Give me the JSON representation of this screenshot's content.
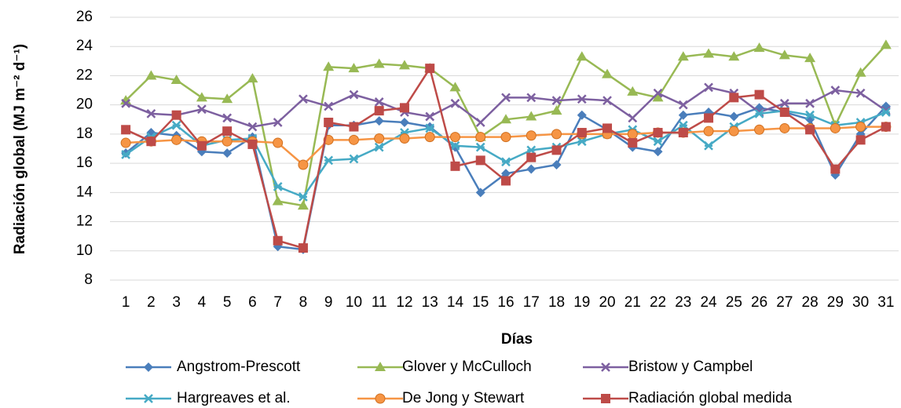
{
  "chart_data": {
    "type": "line",
    "y_label": "Radiación global (MJ m⁻² d⁻¹)",
    "x_label": "Días",
    "categories": [
      "1",
      "2",
      "3",
      "4",
      "5",
      "6",
      "7",
      "8",
      "9",
      "10",
      "11",
      "12",
      "13",
      "14",
      "15",
      "16",
      "17",
      "18",
      "19",
      "20",
      "21",
      "22",
      "23",
      "24",
      "25",
      "26",
      "27",
      "28",
      "29",
      "30",
      "31"
    ],
    "ylim": [
      8,
      26
    ],
    "yticks": [
      8,
      10,
      12,
      14,
      16,
      18,
      20,
      22,
      24,
      26
    ],
    "grid": true,
    "legend": "bottom",
    "series": [
      {
        "name": "Angstrom-Prescott",
        "color": "#4a7ebb",
        "marker": "diamond",
        "values": [
          16.7,
          18.1,
          17.9,
          16.8,
          16.7,
          17.8,
          10.3,
          10.1,
          18.6,
          18.6,
          18.9,
          18.8,
          18.5,
          17.1,
          14.0,
          15.3,
          15.6,
          15.9,
          19.3,
          18.3,
          17.1,
          16.8,
          19.3,
          19.5,
          19.2,
          19.8,
          19.5,
          19.0,
          15.2,
          18.0,
          19.9
        ]
      },
      {
        "name": "Glover y McCulloch",
        "color": "#98b954",
        "marker": "triangle",
        "values": [
          20.3,
          22.0,
          21.7,
          20.5,
          20.4,
          21.8,
          13.4,
          13.1,
          22.6,
          22.5,
          22.8,
          22.7,
          22.5,
          21.2,
          17.8,
          19.0,
          19.2,
          19.6,
          23.3,
          22.1,
          20.9,
          20.5,
          23.3,
          23.5,
          23.3,
          23.9,
          23.4,
          23.2,
          18.6,
          22.2,
          24.1
        ]
      },
      {
        "name": "Bristow y Campbel",
        "color": "#7d60a0",
        "marker": "x",
        "values": [
          20.1,
          19.4,
          19.3,
          19.7,
          19.1,
          18.5,
          18.8,
          20.4,
          19.9,
          20.7,
          20.2,
          19.5,
          19.2,
          20.1,
          18.8,
          20.5,
          20.5,
          20.3,
          20.4,
          20.3,
          19.1,
          20.8,
          20.0,
          21.2,
          20.8,
          19.5,
          20.1,
          20.1,
          21.0,
          20.8,
          19.6
        ]
      },
      {
        "name": "Hargreaves et al.",
        "color": "#46aac5",
        "marker": "star",
        "values": [
          16.6,
          17.8,
          18.6,
          17.2,
          17.6,
          17.7,
          14.4,
          13.7,
          16.2,
          16.3,
          17.1,
          18.1,
          18.4,
          17.2,
          17.1,
          16.1,
          16.9,
          17.1,
          17.5,
          18.0,
          18.3,
          17.5,
          18.6,
          17.2,
          18.5,
          19.4,
          19.6,
          19.3,
          18.6,
          18.8,
          19.5
        ]
      },
      {
        "name": "De Jong y Stewart",
        "color": "#f69545",
        "marker": "circle",
        "values": [
          17.4,
          17.5,
          17.6,
          17.5,
          17.5,
          17.5,
          17.4,
          15.9,
          17.6,
          17.6,
          17.7,
          17.7,
          17.8,
          17.8,
          17.8,
          17.8,
          17.9,
          18.0,
          18.0,
          18.0,
          18.0,
          18.1,
          18.1,
          18.2,
          18.2,
          18.3,
          18.4,
          18.4,
          18.4,
          18.5,
          18.5
        ]
      },
      {
        "name": "Radiación global medida",
        "color": "#be4b48",
        "marker": "square",
        "values": [
          18.3,
          17.5,
          19.3,
          17.2,
          18.2,
          17.3,
          10.7,
          10.2,
          18.8,
          18.5,
          19.6,
          19.8,
          22.5,
          15.8,
          16.2,
          14.8,
          16.4,
          16.9,
          18.1,
          18.4,
          17.4,
          18.1,
          18.1,
          19.1,
          20.5,
          20.7,
          19.5,
          18.3,
          15.6,
          17.6,
          18.5
        ]
      }
    ]
  }
}
